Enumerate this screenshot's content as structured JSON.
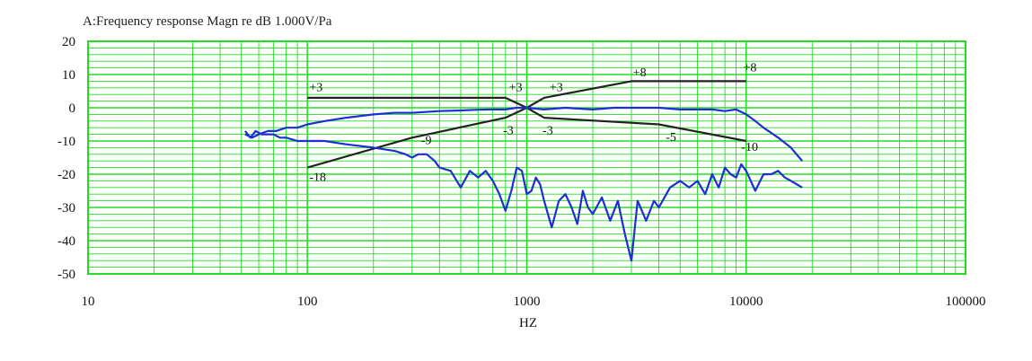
{
  "chart_data": {
    "type": "line",
    "title": "A:Frequency response Magn re dB 1.000V/Pa",
    "xlabel": "HZ",
    "ylabel": "",
    "x_scale": "log",
    "xlim": [
      10,
      100000
    ],
    "ylim": [
      -50,
      20
    ],
    "xticks": [
      "10",
      "100",
      "1000",
      "10000",
      "100000"
    ],
    "yticks": [
      "20",
      "10",
      "0",
      "-10",
      "-20",
      "-30",
      "-40",
      "-50"
    ],
    "grid": true,
    "colors": {
      "grid": "#22dd22",
      "series": "#1a2fd6",
      "limits": "#222222"
    },
    "series": [
      {
        "x": [
          52,
          56,
          60,
          66,
          72,
          80,
          90,
          100,
          120,
          150,
          200,
          250,
          300,
          400,
          500,
          600,
          700,
          800,
          900,
          1000,
          1200,
          1500,
          2000,
          2500,
          3000,
          4000,
          5000,
          6000,
          7000,
          8000,
          9000,
          10000,
          11000,
          12000,
          14000,
          16000,
          18000
        ],
        "values": [
          -8,
          -9,
          -8,
          -7,
          -7,
          -6,
          -6,
          -5,
          -4,
          -3,
          -2,
          -1.5,
          -1.5,
          -1,
          -0.8,
          -0.6,
          -0.5,
          -0.5,
          0,
          0,
          -0.5,
          0,
          -0.5,
          0,
          0,
          0,
          -0.5,
          -0.5,
          -0.5,
          -1,
          -0.5,
          -2,
          -4,
          -6,
          -9,
          -12,
          -16
        ]
      },
      {
        "x": [
          52,
          55,
          58,
          62,
          66,
          70,
          75,
          80,
          90,
          100,
          120,
          150,
          200,
          250,
          280,
          300,
          320,
          350,
          380,
          400,
          450,
          500,
          550,
          600,
          650,
          700,
          750,
          800,
          850,
          900,
          950,
          1000,
          1050,
          1100,
          1150,
          1200,
          1300,
          1400,
          1500,
          1600,
          1700,
          1800,
          1900,
          2000,
          2200,
          2400,
          2600,
          2800,
          3000,
          3200,
          3500,
          3800,
          4000,
          4500,
          5000,
          5500,
          6000,
          6500,
          7000,
          7500,
          8000,
          8500,
          9000,
          9500,
          10000,
          11000,
          12000,
          13000,
          14000,
          15000,
          16000,
          18000
        ],
        "values": [
          -7,
          -9,
          -7,
          -8,
          -8,
          -8,
          -9,
          -9,
          -10,
          -10,
          -10,
          -11,
          -12,
          -13,
          -14,
          -15,
          -14,
          -14,
          -16,
          -18,
          -19,
          -24,
          -19,
          -21,
          -19,
          -22,
          -26,
          -31,
          -25,
          -18,
          -19,
          -26,
          -25,
          -21,
          -23,
          -28,
          -36,
          -28,
          -26,
          -30,
          -35,
          -25,
          -30,
          -32,
          -27,
          -34,
          -28,
          -38,
          -46,
          -28,
          -34,
          -28,
          -30,
          -24,
          -22,
          -24,
          -22,
          -26,
          -20,
          -24,
          -18,
          -20,
          -21,
          -17,
          -19,
          -25,
          -20,
          -20,
          -19,
          -21,
          -22,
          -24
        ]
      }
    ],
    "limit_lines": [
      {
        "x": [
          100,
          800,
          1000,
          1200,
          3000,
          10000
        ],
        "values": [
          3,
          3,
          0,
          3,
          8,
          8
        ]
      },
      {
        "x": [
          100,
          300,
          800,
          1000,
          1200,
          4000,
          10000
        ],
        "values": [
          -18,
          -9,
          -3,
          0,
          -3,
          -5,
          -10
        ]
      }
    ],
    "annotations": [
      {
        "text": "+3",
        "x": 102,
        "y": 5
      },
      {
        "text": "+3",
        "x": 830,
        "y": 5
      },
      {
        "text": "+3",
        "x": 1270,
        "y": 5
      },
      {
        "text": "+8",
        "x": 3050,
        "y": 9.5
      },
      {
        "text": "+8",
        "x": 9700,
        "y": 11
      },
      {
        "text": "-9",
        "x": 330,
        "y": -11
      },
      {
        "text": "-3",
        "x": 780,
        "y": -8
      },
      {
        "text": "-3",
        "x": 1180,
        "y": -8
      },
      {
        "text": "-5",
        "x": 4300,
        "y": -10
      },
      {
        "text": "-10",
        "x": 9500,
        "y": -13
      },
      {
        "text": "-18",
        "x": 102,
        "y": -22
      }
    ]
  }
}
